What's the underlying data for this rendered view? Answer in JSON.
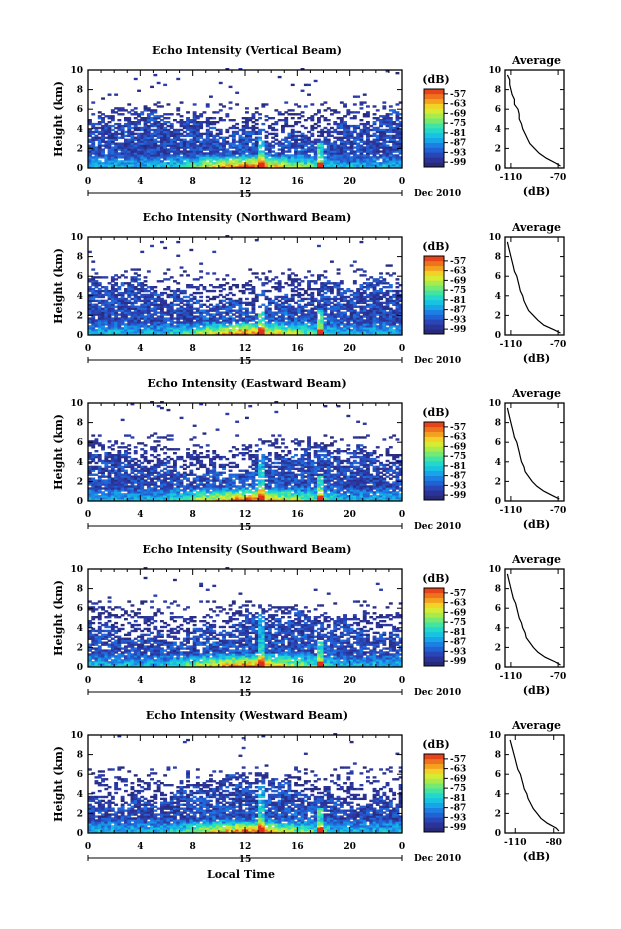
{
  "chart_data": [
    {
      "type": "heatmap",
      "title": "Echo Intensity (Vertical Beam)",
      "ylabel": "Height (km)",
      "x_ticks": [
        "0",
        "4",
        "8",
        "12",
        "16",
        "20",
        "0"
      ],
      "xlim": [
        0,
        24
      ],
      "ylim": [
        0,
        10
      ],
      "y_ticks": [
        "0",
        "2",
        "4",
        "6",
        "8",
        "10"
      ],
      "day_label": "15",
      "date_label": "Dec 2010",
      "colorbar": {
        "unit": "(dB)",
        "ticks": [
          "-57",
          "-63",
          "-69",
          "-75",
          "-81",
          "-87",
          "-93",
          "-99"
        ],
        "range": [
          -102,
          -54
        ]
      },
      "average": {
        "title": "Average",
        "xlabel": "(dB)",
        "x_ticks": [
          "-110",
          "-70"
        ],
        "xlim": [
          -115,
          -65
        ],
        "y_ticks": [
          "0",
          "2",
          "4",
          "6",
          "8",
          "10"
        ],
        "ylim": [
          0,
          10
        ],
        "height": [
          0.2,
          0.5,
          1,
          1.5,
          2,
          2.5,
          3,
          3.5,
          4,
          4.5,
          5,
          5.5,
          6,
          6.5,
          7,
          7.5,
          8,
          8.5,
          9,
          9.5
        ],
        "db": [
          -68,
          -72,
          -80,
          -86,
          -90,
          -94,
          -96,
          -98,
          -100,
          -101,
          -103,
          -103,
          -104,
          -107,
          -107,
          -109,
          -110,
          -111,
          -111,
          -113
        ]
      }
    },
    {
      "type": "heatmap",
      "title": "Echo Intensity (Northward Beam)",
      "ylabel": "Height (km)",
      "x_ticks": [
        "0",
        "4",
        "8",
        "12",
        "16",
        "20",
        "0"
      ],
      "xlim": [
        0,
        24
      ],
      "ylim": [
        0,
        10
      ],
      "y_ticks": [
        "0",
        "2",
        "4",
        "6",
        "8",
        "10"
      ],
      "day_label": "15",
      "date_label": "Dec 2010",
      "colorbar": {
        "unit": "(dB)",
        "ticks": [
          "-57",
          "-63",
          "-69",
          "-75",
          "-81",
          "-87",
          "-93",
          "-99"
        ],
        "range": [
          -102,
          -54
        ]
      },
      "average": {
        "title": "Average",
        "xlabel": "(dB)",
        "x_ticks": [
          "-110",
          "-70"
        ],
        "xlim": [
          -115,
          -65
        ],
        "y_ticks": [
          "0",
          "2",
          "4",
          "6",
          "8",
          "10"
        ],
        "ylim": [
          0,
          10
        ],
        "height": [
          0.2,
          0.5,
          1,
          1.5,
          2,
          2.5,
          3,
          3.5,
          4,
          4.5,
          5,
          5.5,
          6,
          6.5,
          7,
          7.5,
          8,
          8.5,
          9,
          9.5
        ],
        "db": [
          -68,
          -73,
          -82,
          -87,
          -91,
          -95,
          -97,
          -99,
          -100,
          -102,
          -103,
          -104,
          -105,
          -107,
          -108,
          -109,
          -110,
          -111,
          -112,
          -113
        ]
      }
    },
    {
      "type": "heatmap",
      "title": "Echo Intensity (Eastward Beam)",
      "ylabel": "Height (km)",
      "x_ticks": [
        "0",
        "4",
        "8",
        "12",
        "16",
        "20",
        "0"
      ],
      "xlim": [
        0,
        24
      ],
      "ylim": [
        0,
        10
      ],
      "y_ticks": [
        "0",
        "2",
        "4",
        "6",
        "8",
        "10"
      ],
      "day_label": "15",
      "date_label": "Dec 2010",
      "colorbar": {
        "unit": "(dB)",
        "ticks": [
          "-57",
          "-63",
          "-69",
          "-75",
          "-81",
          "-87",
          "-93",
          "-99"
        ],
        "range": [
          -102,
          -54
        ]
      },
      "average": {
        "title": "Average",
        "xlabel": "(dB)",
        "x_ticks": [
          "-110",
          "-70"
        ],
        "xlim": [
          -115,
          -65
        ],
        "y_ticks": [
          "0",
          "2",
          "4",
          "6",
          "8",
          "10"
        ],
        "ylim": [
          0,
          10
        ],
        "height": [
          0.2,
          0.5,
          1,
          1.5,
          2,
          2.5,
          3,
          3.5,
          4,
          4.5,
          5,
          5.5,
          6,
          6.5,
          7,
          7.5,
          8,
          8.5,
          9,
          9.5
        ],
        "db": [
          -69,
          -74,
          -82,
          -88,
          -92,
          -95,
          -98,
          -99,
          -101,
          -102,
          -103,
          -104,
          -105,
          -107,
          -108,
          -109,
          -110,
          -111,
          -112,
          -113
        ]
      }
    },
    {
      "type": "heatmap",
      "title": "Echo Intensity (Southward Beam)",
      "ylabel": "Height (km)",
      "x_ticks": [
        "0",
        "4",
        "8",
        "12",
        "16",
        "20",
        "0"
      ],
      "xlim": [
        0,
        24
      ],
      "ylim": [
        0,
        10
      ],
      "y_ticks": [
        "0",
        "2",
        "4",
        "6",
        "8",
        "10"
      ],
      "day_label": "15",
      "date_label": "Dec 2010",
      "colorbar": {
        "unit": "(dB)",
        "ticks": [
          "-57",
          "-63",
          "-69",
          "-75",
          "-81",
          "-87",
          "-93",
          "-99"
        ],
        "range": [
          -102,
          -54
        ]
      },
      "average": {
        "title": "Average",
        "xlabel": "(dB)",
        "x_ticks": [
          "-110",
          "-70"
        ],
        "xlim": [
          -115,
          -65
        ],
        "y_ticks": [
          "0",
          "2",
          "4",
          "6",
          "8",
          "10"
        ],
        "ylim": [
          0,
          10
        ],
        "height": [
          0.2,
          0.5,
          1,
          1.5,
          2,
          2.5,
          3,
          3.5,
          4,
          4.5,
          5,
          5.5,
          6,
          6.5,
          7,
          7.5,
          8,
          8.5,
          9,
          9.5
        ],
        "db": [
          -68,
          -72,
          -81,
          -87,
          -91,
          -94,
          -97,
          -98,
          -100,
          -101,
          -103,
          -104,
          -105,
          -106,
          -108,
          -109,
          -110,
          -111,
          -112,
          -113
        ]
      }
    },
    {
      "type": "heatmap",
      "title": "Echo Intensity (Westward Beam)",
      "ylabel": "Height (km)",
      "x_ticks": [
        "0",
        "4",
        "8",
        "12",
        "16",
        "20",
        "0"
      ],
      "xlim": [
        0,
        24
      ],
      "ylim": [
        0,
        10
      ],
      "y_ticks": [
        "0",
        "2",
        "4",
        "6",
        "8",
        "10"
      ],
      "day_label": "15",
      "date_label": "Dec 2010",
      "xlabel": "Local Time",
      "colorbar": {
        "unit": "(dB)",
        "ticks": [
          "-57",
          "-63",
          "-69",
          "-75",
          "-81",
          "-87",
          "-93",
          "-99"
        ],
        "range": [
          -102,
          -54
        ]
      },
      "average": {
        "title": "Average",
        "xlabel": "(dB)",
        "x_ticks": [
          "-110",
          "-80"
        ],
        "xlim": [
          -118,
          -72
        ],
        "y_ticks": [
          "0",
          "2",
          "4",
          "6",
          "8",
          "10"
        ],
        "ylim": [
          0,
          10
        ],
        "height": [
          0.2,
          0.5,
          1,
          1.5,
          2,
          2.5,
          3,
          3.5,
          4,
          4.5,
          5,
          5.5,
          6,
          6.5,
          7,
          7.5,
          8,
          8.5,
          9,
          9.5
        ],
        "db": [
          -76,
          -78,
          -85,
          -90,
          -93,
          -96,
          -98,
          -100,
          -101,
          -103,
          -104,
          -105,
          -106,
          -108,
          -109,
          -110,
          -111,
          -112,
          -113,
          -114
        ]
      }
    }
  ]
}
